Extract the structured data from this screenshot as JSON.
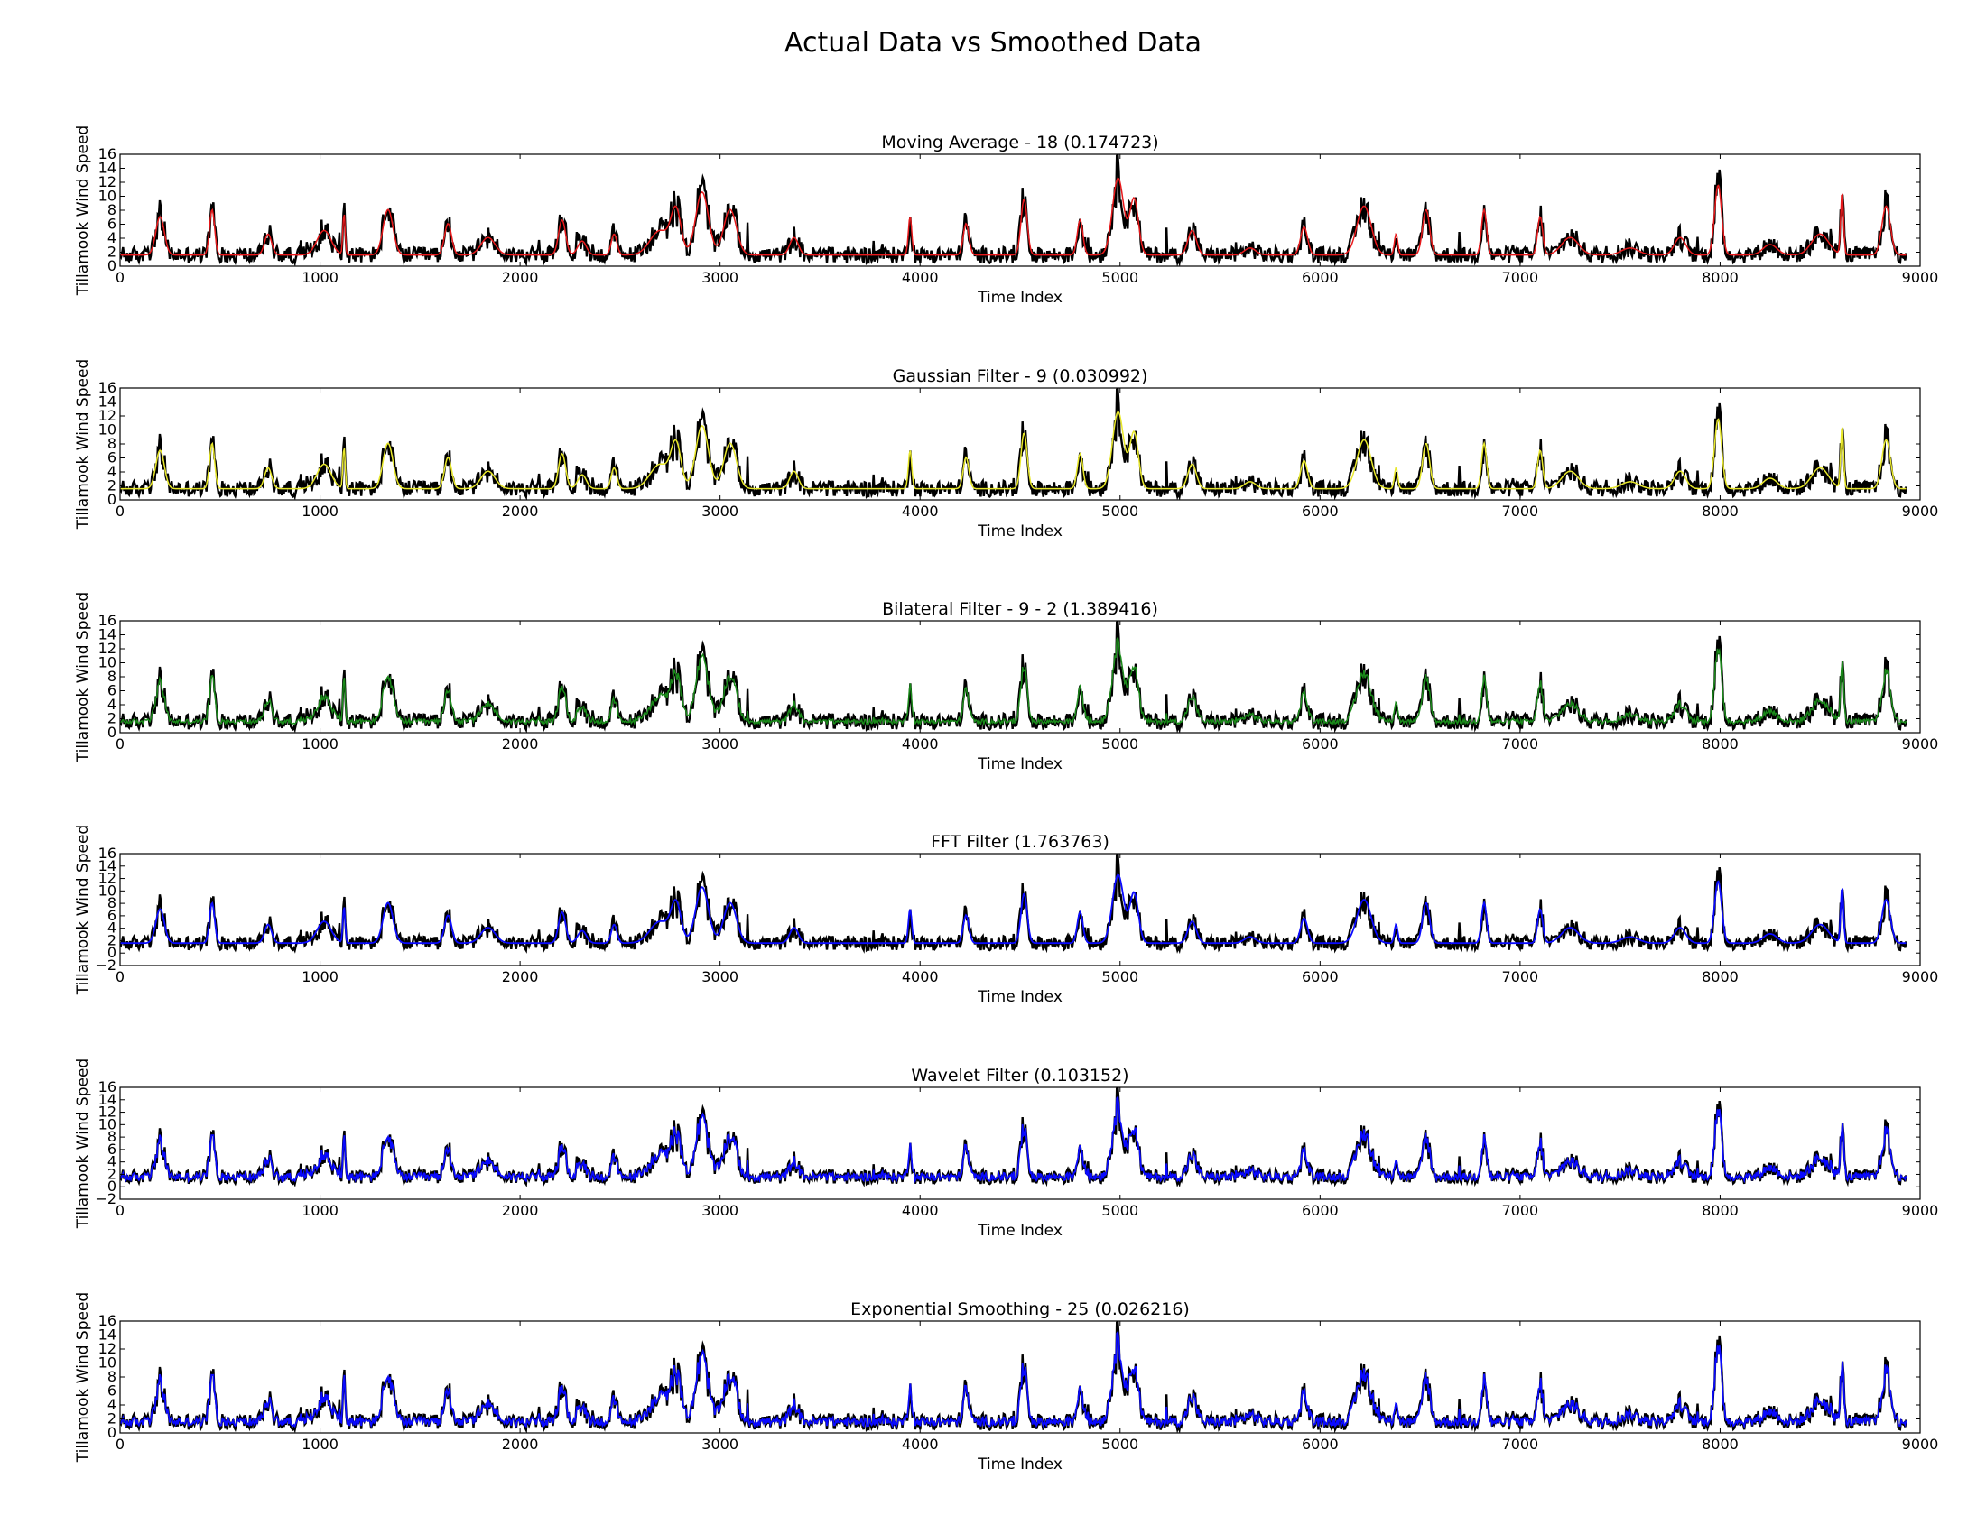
{
  "figure": {
    "title": "Actual Data vs Smoothed Data"
  },
  "colors": {
    "actual": "#000000",
    "red": "#e8191b",
    "yellow": "#e8e82a",
    "green": "#1a8a1a",
    "blue": "#0a0aff"
  },
  "chart_data": [
    {
      "type": "line",
      "title": "Moving Average - 18 (0.174723)",
      "xlabel": "Time Index",
      "ylabel": "Tillamook Wind Speed",
      "xlim": [
        0,
        9000
      ],
      "ylim": [
        0,
        16
      ],
      "xticks": [
        "0",
        "1000",
        "2000",
        "3000",
        "4000",
        "5000",
        "6000",
        "7000",
        "8000",
        "9000"
      ],
      "yticks": [
        "0",
        "2",
        "4",
        "6",
        "8",
        "10",
        "12",
        "14",
        "16"
      ],
      "grid": false,
      "series": [
        {
          "role": "actual",
          "color": "#000000"
        },
        {
          "role": "smoothed",
          "color": "#e8191b"
        }
      ]
    },
    {
      "type": "line",
      "title": "Gaussian Filter - 9 (0.030992)",
      "xlabel": "Time Index",
      "ylabel": "Tillamook Wind Speed",
      "xlim": [
        0,
        9000
      ],
      "ylim": [
        0,
        16
      ],
      "xticks": [
        "0",
        "1000",
        "2000",
        "3000",
        "4000",
        "5000",
        "6000",
        "7000",
        "8000",
        "9000"
      ],
      "yticks": [
        "0",
        "2",
        "4",
        "6",
        "8",
        "10",
        "12",
        "14",
        "16"
      ],
      "grid": false,
      "series": [
        {
          "role": "actual",
          "color": "#000000"
        },
        {
          "role": "smoothed",
          "color": "#e8e82a"
        }
      ]
    },
    {
      "type": "line",
      "title": "Bilateral Filter - 9 - 2 (1.389416)",
      "xlabel": "Time Index",
      "ylabel": "Tillamook Wind Speed",
      "xlim": [
        0,
        9000
      ],
      "ylim": [
        0,
        16
      ],
      "xticks": [
        "0",
        "1000",
        "2000",
        "3000",
        "4000",
        "5000",
        "6000",
        "7000",
        "8000",
        "9000"
      ],
      "yticks": [
        "0",
        "2",
        "4",
        "6",
        "8",
        "10",
        "12",
        "14",
        "16"
      ],
      "grid": false,
      "series": [
        {
          "role": "actual",
          "color": "#000000"
        },
        {
          "role": "smoothed",
          "color": "#1a8a1a"
        }
      ]
    },
    {
      "type": "line",
      "title": "FFT Filter (1.763763)",
      "xlabel": "Time Index",
      "ylabel": "Tillamook Wind Speed",
      "xlim": [
        0,
        9000
      ],
      "ylim": [
        -2,
        16
      ],
      "xticks": [
        "0",
        "1000",
        "2000",
        "3000",
        "4000",
        "5000",
        "6000",
        "7000",
        "8000",
        "9000"
      ],
      "yticks": [
        "−2",
        "0",
        "2",
        "4",
        "6",
        "8",
        "10",
        "12",
        "14",
        "16"
      ],
      "grid": false,
      "series": [
        {
          "role": "actual",
          "color": "#000000"
        },
        {
          "role": "smoothed",
          "color": "#0a0aff"
        }
      ]
    },
    {
      "type": "line",
      "title": "Wavelet Filter (0.103152)",
      "xlabel": "Time Index",
      "ylabel": "Tillamook Wind Speed",
      "xlim": [
        0,
        9000
      ],
      "ylim": [
        -2,
        16
      ],
      "xticks": [
        "0",
        "1000",
        "2000",
        "3000",
        "4000",
        "5000",
        "6000",
        "7000",
        "8000",
        "9000"
      ],
      "yticks": [
        "−2",
        "0",
        "2",
        "4",
        "6",
        "8",
        "10",
        "12",
        "14",
        "16"
      ],
      "grid": false,
      "series": [
        {
          "role": "actual",
          "color": "#000000"
        },
        {
          "role": "smoothed",
          "color": "#0a0aff"
        }
      ]
    },
    {
      "type": "line",
      "title": "Exponential Smoothing - 25 (0.026216)",
      "xlabel": "Time Index",
      "ylabel": "Tillamook Wind Speed",
      "xlim": [
        0,
        9000
      ],
      "ylim": [
        0,
        16
      ],
      "xticks": [
        "0",
        "1000",
        "2000",
        "3000",
        "4000",
        "5000",
        "6000",
        "7000",
        "8000",
        "9000"
      ],
      "yticks": [
        "0",
        "2",
        "4",
        "6",
        "8",
        "10",
        "12",
        "14",
        "16"
      ],
      "grid": false,
      "series": [
        {
          "role": "actual",
          "color": "#000000"
        },
        {
          "role": "smoothed",
          "color": "#0a0aff"
        }
      ]
    }
  ]
}
